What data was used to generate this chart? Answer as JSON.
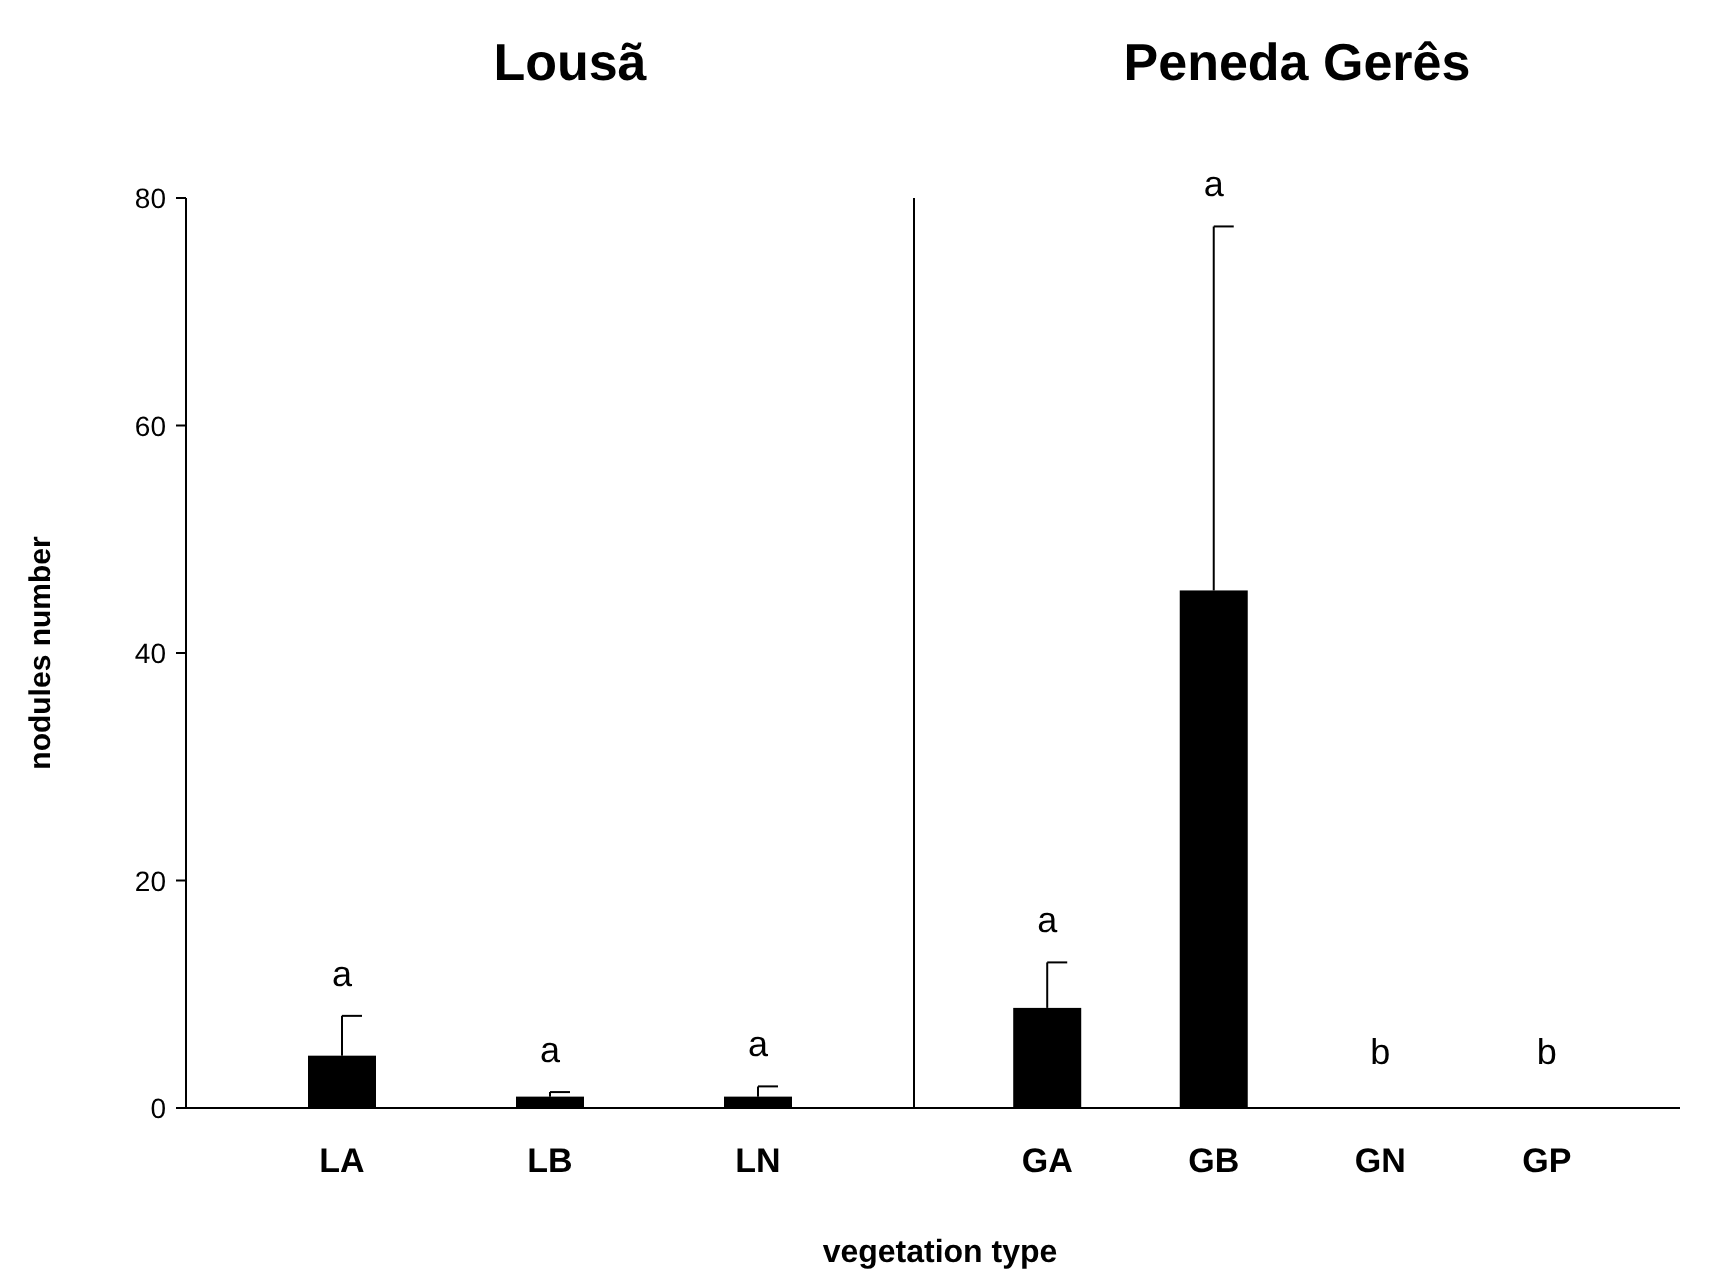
{
  "chart_data": [
    {
      "type": "bar",
      "title": "Lousã",
      "xlabel": "vegetation type",
      "ylabel": "nodules number",
      "categories": [
        "LA",
        "LB",
        "LN"
      ],
      "values": [
        4.6,
        1.0,
        1.0
      ],
      "errors": [
        [
          4.6,
          8.1
        ],
        [
          1.0,
          1.4
        ],
        [
          1.0,
          1.9
        ]
      ],
      "color": "#000000",
      "ylim": [
        0,
        80
      ],
      "yticks": [
        0,
        20,
        40,
        60,
        80
      ],
      "annotations": [
        "a",
        "a",
        "a"
      ]
    },
    {
      "type": "bar",
      "title": "Peneda Gerês",
      "categories": [
        "GA",
        "GB",
        "GN",
        "GP"
      ],
      "values": [
        8.8,
        45.5,
        0,
        0
      ],
      "errors": [
        [
          8.8,
          12.8
        ],
        [
          45.5,
          77.5
        ],
        null,
        null
      ],
      "color": "#000000",
      "ylim": [
        0,
        80
      ],
      "tick_labels": "x",
      "annotations": [
        "a",
        "a",
        "b",
        "b"
      ]
    }
  ]
}
